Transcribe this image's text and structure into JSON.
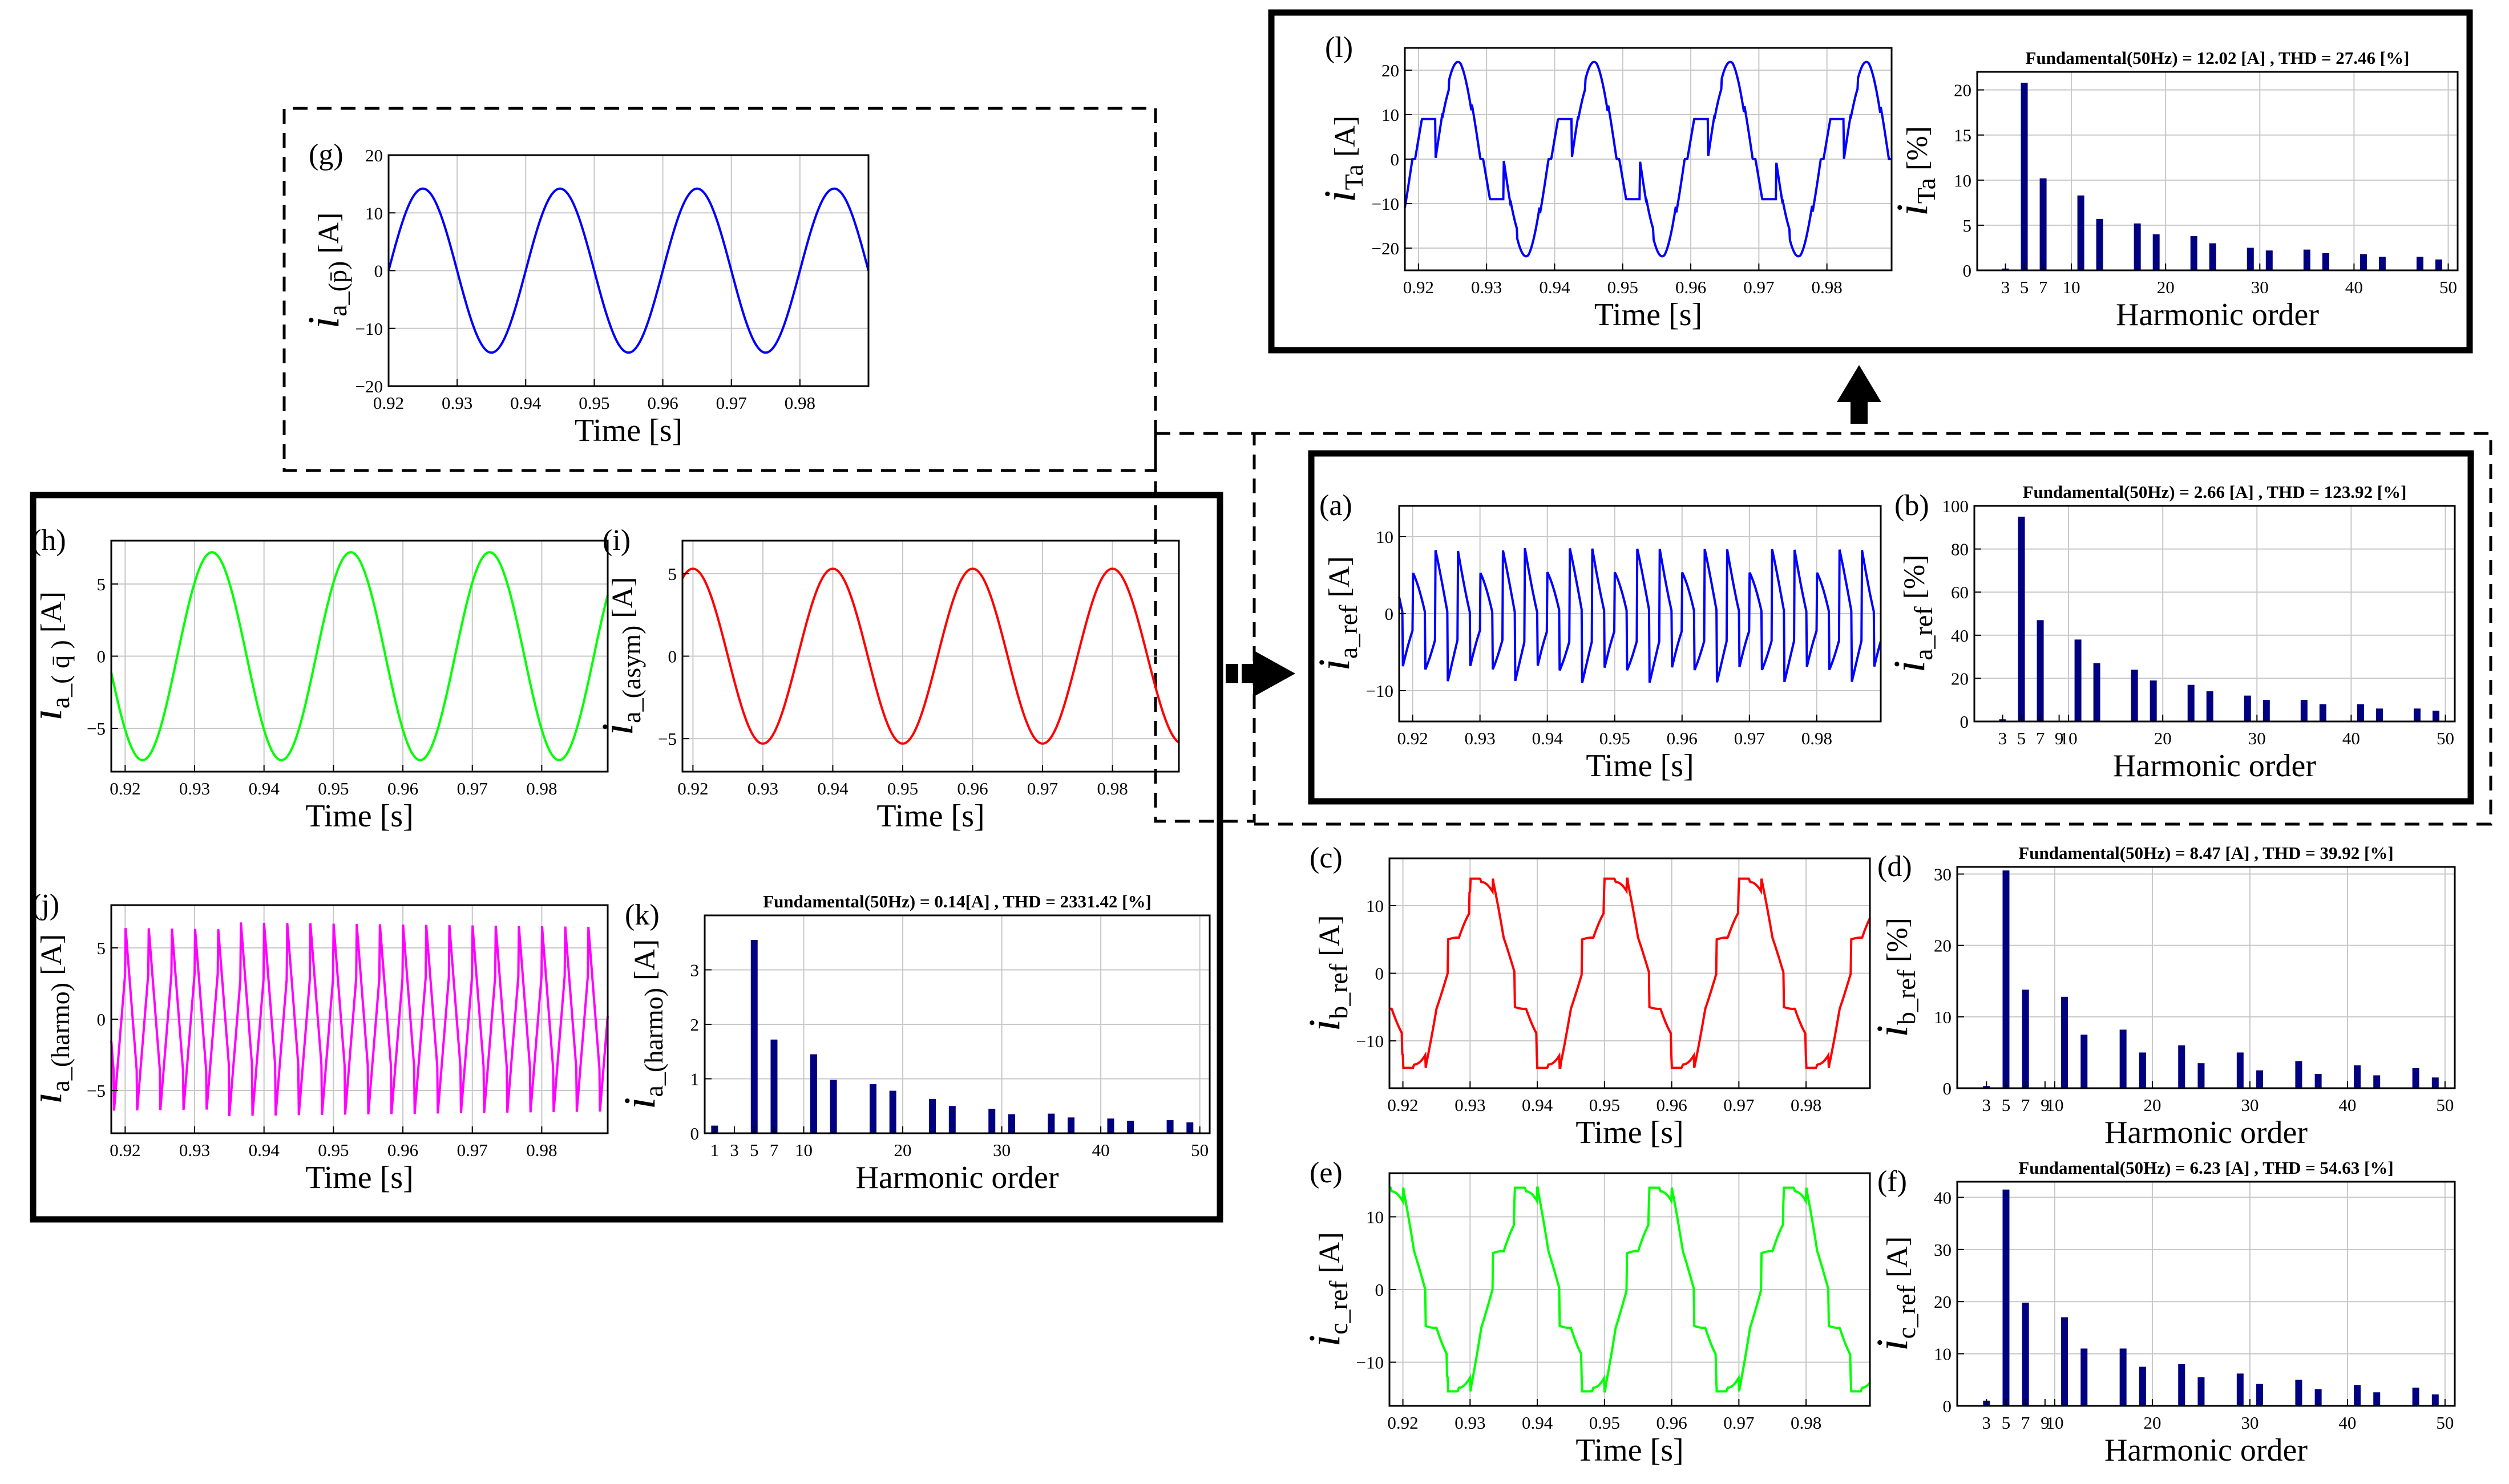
{
  "figure": {
    "panel_letters": {
      "a": "(a)",
      "b": "(b)",
      "c": "(c)",
      "d": "(d)",
      "e": "(e)",
      "f": "(f)",
      "g": "(g)",
      "h": "(h)",
      "i": "(i)",
      "j": "(j)",
      "k": "(k)",
      "l": "(l)"
    },
    "colors": {
      "blue": "#0000ff",
      "red": "#ff0000",
      "green": "#00ff00",
      "magenta": "#ff00ff",
      "bar": "#000080",
      "grid": "#c8c8c8",
      "frame": "#000000"
    }
  },
  "chart_data": [
    {
      "id": "l_time",
      "type": "line",
      "letter": "(l)",
      "ylabel_main": "i",
      "ylabel_sub": "Ta",
      "ylabel_unit": " [A]",
      "xlabel": "Time [s]",
      "xlim": [
        0.918,
        0.9895
      ],
      "ylim": [
        -25,
        25
      ],
      "xticks": [
        0.92,
        0.93,
        0.94,
        0.95,
        0.96,
        0.97,
        0.98
      ],
      "xtick_labels": [
        "0.92",
        "0.93",
        "0.94",
        "0.95",
        "0.96",
        "0.97",
        "0.98"
      ],
      "yticks": [
        -20,
        -10,
        0,
        10,
        20
      ],
      "ytick_labels": [
        "−20",
        "−10",
        "0",
        "10",
        "20"
      ],
      "color": "#0000ff",
      "wave": "load",
      "amp": 23
    },
    {
      "id": "l_harm",
      "type": "bar",
      "title": "Fundamental(50Hz) = 12.02 [A] , THD = 27.46 [%]",
      "ylabel_main": "i",
      "ylabel_sub": "Ta",
      "ylabel_unit": " [%]",
      "xlabel": "Harmonic order",
      "xlim": [
        0,
        51
      ],
      "ylim": [
        0,
        22
      ],
      "xticks": [
        3,
        5,
        7,
        10,
        20,
        30,
        40,
        50
      ],
      "xtick_labels": [
        "3",
        "5",
        "7",
        "10",
        "20",
        "30",
        "40",
        "50"
      ],
      "yticks": [
        0,
        5,
        10,
        15,
        20
      ],
      "ytick_labels": [
        "0",
        "5",
        "10",
        "15",
        "20"
      ],
      "orders": [
        3,
        5,
        7,
        11,
        13,
        17,
        19,
        23,
        25,
        29,
        31,
        35,
        37,
        41,
        43,
        47,
        49
      ],
      "values": [
        0.2,
        20.8,
        10.2,
        8.3,
        5.7,
        5.2,
        4.0,
        3.8,
        3.0,
        2.5,
        2.2,
        2.3,
        1.9,
        1.8,
        1.5,
        1.5,
        1.2
      ]
    },
    {
      "id": "g_time",
      "type": "line",
      "letter": "(g)",
      "ylabel_main": "i",
      "ylabel_sub": "a_(p̄)",
      "ylabel_unit": " [A]",
      "xlabel": "Time [s]",
      "xlim": [
        0.92,
        0.99
      ],
      "ylim": [
        -20,
        20
      ],
      "xticks": [
        0.92,
        0.93,
        0.94,
        0.95,
        0.96,
        0.97,
        0.98
      ],
      "xtick_labels": [
        "0.92",
        "0.93",
        "0.94",
        "0.95",
        "0.96",
        "0.97",
        "0.98"
      ],
      "yticks": [
        -20,
        -10,
        0,
        10,
        20
      ],
      "ytick_labels": [
        "−20",
        "−10",
        "0",
        "10",
        "20"
      ],
      "color": "#0000ff",
      "wave": "sine",
      "amp": 14.2,
      "phase_deg": 0
    },
    {
      "id": "a_time",
      "type": "line",
      "letter": "(a)",
      "ylabel_main": "i",
      "ylabel_sub": "a_ref",
      "ylabel_unit": " [A]",
      "xlabel": "Time [s]",
      "xlim": [
        0.918,
        0.9895
      ],
      "ylim": [
        -14,
        14
      ],
      "xticks": [
        0.92,
        0.93,
        0.94,
        0.95,
        0.96,
        0.97,
        0.98
      ],
      "xtick_labels": [
        "0.92",
        "0.93",
        "0.94",
        "0.95",
        "0.96",
        "0.97",
        "0.98"
      ],
      "yticks": [
        -10,
        0,
        10
      ],
      "ytick_labels": [
        "−10",
        "0",
        "10"
      ],
      "color": "#0000ff",
      "wave": "ref",
      "amp": 9
    },
    {
      "id": "b_harm",
      "type": "bar",
      "letter": "(b)",
      "title": "Fundamental(50Hz) = 2.66 [A] , THD = 123.92 [%]",
      "ylabel_main": "i",
      "ylabel_sub": "a_ref",
      "ylabel_unit": " [%]",
      "xlabel": "Harmonic order",
      "xlim": [
        0,
        51
      ],
      "ylim": [
        0,
        100
      ],
      "xticks": [
        3,
        5,
        7,
        9,
        10,
        20,
        30,
        40,
        50
      ],
      "xtick_labels": [
        "3",
        "5",
        "7",
        "9",
        "10",
        "20",
        "30",
        "40",
        "50"
      ],
      "yticks": [
        0,
        20,
        40,
        60,
        80,
        100
      ],
      "ytick_labels": [
        "0",
        "20",
        "40",
        "60",
        "80",
        "100"
      ],
      "orders": [
        3,
        5,
        7,
        11,
        13,
        17,
        19,
        23,
        25,
        29,
        31,
        35,
        37,
        41,
        43,
        47,
        49
      ],
      "values": [
        1,
        95,
        47,
        38,
        27,
        24,
        19,
        17,
        14,
        12,
        10,
        10,
        8,
        8,
        6,
        6,
        5
      ]
    },
    {
      "id": "h_time",
      "type": "line",
      "letter": "(h)",
      "ylabel_main": "i",
      "ylabel_sub": "a_( q̄ )",
      "ylabel_unit": " [A]",
      "xlabel": "Time [s]",
      "xlim": [
        0.918,
        0.9895
      ],
      "ylim": [
        -8,
        8
      ],
      "xticks": [
        0.92,
        0.93,
        0.94,
        0.95,
        0.96,
        0.97,
        0.98
      ],
      "xtick_labels": [
        "0.92",
        "0.93",
        "0.94",
        "0.95",
        "0.96",
        "0.97",
        "0.98"
      ],
      "yticks": [
        -5,
        0,
        5
      ],
      "ytick_labels": [
        "−5",
        "0",
        "5"
      ],
      "color": "#00ff00",
      "wave": "sine",
      "amp": 7.2,
      "phase_deg": -135
    },
    {
      "id": "i_time",
      "type": "line",
      "letter": "(i)",
      "ylabel_main": "i",
      "ylabel_sub": "a_(asym)",
      "ylabel_unit": " [A]",
      "xlabel": "Time [s]",
      "xlim": [
        0.9185,
        0.9895
      ],
      "ylim": [
        -7,
        7
      ],
      "xticks": [
        0.92,
        0.93,
        0.94,
        0.95,
        0.96,
        0.97,
        0.98
      ],
      "xtick_labels": [
        "0.92",
        "0.93",
        "0.94",
        "0.95",
        "0.96",
        "0.97",
        "0.98"
      ],
      "yticks": [
        -5,
        0,
        5
      ],
      "ytick_labels": [
        "−5",
        "0",
        "5"
      ],
      "color": "#ff0000",
      "wave": "sine",
      "amp": 5.3,
      "phase_deg": -270
    },
    {
      "id": "j_time",
      "type": "line",
      "letter": "(j)",
      "ylabel_main": "i",
      "ylabel_sub": "a_(harmo)",
      "ylabel_unit": " [A]",
      "xlabel": "Time [s]",
      "xlim": [
        0.918,
        0.9895
      ],
      "ylim": [
        -8,
        8
      ],
      "xticks": [
        0.92,
        0.93,
        0.94,
        0.95,
        0.96,
        0.97,
        0.98
      ],
      "xtick_labels": [
        "0.92",
        "0.93",
        "0.94",
        "0.95",
        "0.96",
        "0.97",
        "0.98"
      ],
      "yticks": [
        -5,
        0,
        5
      ],
      "ytick_labels": [
        "−5",
        "0",
        "5"
      ],
      "color": "#ff00ff",
      "wave": "harm",
      "amp": 7
    },
    {
      "id": "k_harm",
      "type": "bar",
      "letter": "(k)",
      "title": "Fundamental(50Hz) = 0.14[A] , THD = 2331.42 [%]",
      "ylabel_main": "i",
      "ylabel_sub": "a_(harmo)",
      "ylabel_unit": " [A]",
      "xlabel": "Harmonic order",
      "xlim": [
        0,
        51
      ],
      "ylim": [
        0,
        4
      ],
      "xticks": [
        1,
        3,
        5,
        7,
        10,
        20,
        30,
        40,
        50
      ],
      "xtick_labels": [
        "1",
        "3",
        "5",
        "7",
        "10",
        "20",
        "30",
        "40",
        "50"
      ],
      "yticks": [
        0,
        1,
        2,
        3
      ],
      "ytick_labels": [
        "0",
        "1",
        "2",
        "3"
      ],
      "orders": [
        1,
        5,
        7,
        11,
        13,
        17,
        19,
        23,
        25,
        29,
        31,
        35,
        37,
        41,
        43,
        47,
        49
      ],
      "values": [
        0.14,
        3.55,
        1.72,
        1.45,
        0.98,
        0.9,
        0.78,
        0.63,
        0.5,
        0.45,
        0.35,
        0.36,
        0.29,
        0.27,
        0.23,
        0.24,
        0.2
      ]
    },
    {
      "id": "c_time",
      "type": "line",
      "letter": "(c)",
      "ylabel_main": "i",
      "ylabel_sub": "b_ref",
      "ylabel_unit": " [A]",
      "xlabel": "Time [s]",
      "xlim": [
        0.918,
        0.9895
      ],
      "ylim": [
        -17,
        17
      ],
      "xticks": [
        0.92,
        0.93,
        0.94,
        0.95,
        0.96,
        0.97,
        0.98
      ],
      "xtick_labels": [
        "0.92",
        "0.93",
        "0.94",
        "0.95",
        "0.96",
        "0.97",
        "0.98"
      ],
      "yticks": [
        -10,
        0,
        10
      ],
      "ytick_labels": [
        "−10",
        "0",
        "10"
      ],
      "color": "#ff0000",
      "wave": "bref",
      "amp": 14
    },
    {
      "id": "d_harm",
      "type": "bar",
      "letter": "(d)",
      "title": "Fundamental(50Hz) = 8.47 [A] , THD = 39.92 [%]",
      "ylabel_main": "i",
      "ylabel_sub": "b_ref",
      "ylabel_unit": " [%]",
      "xlabel": "Harmonic order",
      "xlim": [
        0,
        51
      ],
      "ylim": [
        0,
        31
      ],
      "xticks": [
        3,
        5,
        7,
        9,
        10,
        20,
        30,
        40,
        50
      ],
      "xtick_labels": [
        "3",
        "5",
        "7",
        "9",
        "10",
        "20",
        "30",
        "40",
        "50"
      ],
      "yticks": [
        0,
        10,
        20,
        30
      ],
      "ytick_labels": [
        "0",
        "10",
        "20",
        "30"
      ],
      "orders": [
        3,
        5,
        7,
        11,
        13,
        17,
        19,
        23,
        25,
        29,
        31,
        35,
        37,
        41,
        43,
        47,
        49
      ],
      "values": [
        0.3,
        30.5,
        13.8,
        12.8,
        7.5,
        8.2,
        5,
        6,
        3.5,
        5,
        2.5,
        3.8,
        2,
        3.2,
        1.8,
        2.8,
        1.5
      ]
    },
    {
      "id": "e_time",
      "type": "line",
      "letter": "(e)",
      "ylabel_main": "i",
      "ylabel_sub": "c_ref",
      "ylabel_unit": " [A]",
      "xlabel": "Time [s]",
      "xlim": [
        0.918,
        0.9895
      ],
      "ylim": [
        -16,
        16
      ],
      "xticks": [
        0.92,
        0.93,
        0.94,
        0.95,
        0.96,
        0.97,
        0.98
      ],
      "xtick_labels": [
        "0.92",
        "0.93",
        "0.94",
        "0.95",
        "0.96",
        "0.97",
        "0.98"
      ],
      "yticks": [
        -10,
        0,
        10
      ],
      "ytick_labels": [
        "−10",
        "0",
        "10"
      ],
      "color": "#00ff00",
      "wave": "cref",
      "amp": 14
    },
    {
      "id": "f_harm",
      "type": "bar",
      "letter": "(f)",
      "title": "Fundamental(50Hz) = 6.23 [A] , THD = 54.63 [%]",
      "ylabel_main": "i",
      "ylabel_sub": "c_ref",
      "ylabel_unit": " [A]",
      "xlabel": "Harmonic order",
      "xlim": [
        0,
        51
      ],
      "ylim": [
        0,
        43
      ],
      "xticks": [
        3,
        5,
        7,
        9,
        10,
        20,
        30,
        40,
        50
      ],
      "xtick_labels": [
        "3",
        "5",
        "7",
        "9",
        "10",
        "20",
        "30",
        "40",
        "50"
      ],
      "yticks": [
        0,
        10,
        20,
        30,
        40
      ],
      "ytick_labels": [
        "0",
        "10",
        "20",
        "30",
        "40"
      ],
      "orders": [
        3,
        5,
        7,
        11,
        13,
        17,
        19,
        23,
        25,
        29,
        31,
        35,
        37,
        41,
        43,
        47,
        49
      ],
      "values": [
        1,
        41.5,
        19.8,
        17,
        11,
        11,
        7.5,
        8,
        5.5,
        6.2,
        4.2,
        5,
        3.2,
        4,
        2.6,
        3.5,
        2.2
      ]
    }
  ]
}
